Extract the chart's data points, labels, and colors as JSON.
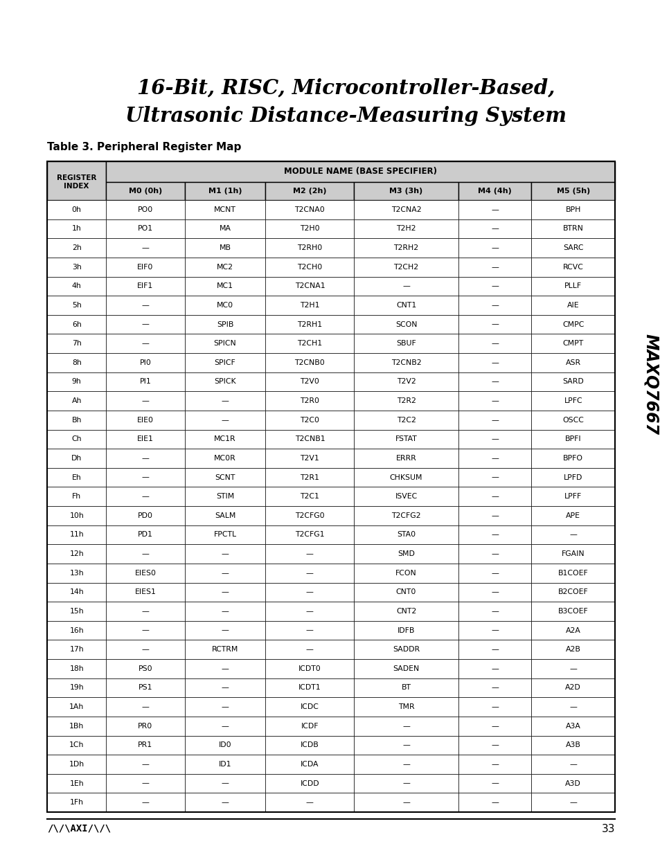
{
  "title_line1": "16-Bit, RISC, Microcontroller-Based,",
  "title_line2": "Ultrasonic Distance-Measuring System",
  "table_title": "Table 3. Peripheral Register Map",
  "side_text": "MAXQ7667",
  "footer_page": "33",
  "col_headers_row1_left": "REGISTER\nINDEX",
  "col_headers_row1_right": "MODULE NAME (BASE SPECIFIER)",
  "col_headers_row2": [
    "M0 (0h)",
    "M1 (1h)",
    "M2 (2h)",
    "M3 (3h)",
    "M4 (4h)",
    "M5 (5h)"
  ],
  "rows": [
    [
      "0h",
      "PO0",
      "MCNT",
      "T2CNA0",
      "T2CNA2",
      "—",
      "BPH"
    ],
    [
      "1h",
      "PO1",
      "MA",
      "T2H0",
      "T2H2",
      "—",
      "BTRN"
    ],
    [
      "2h",
      "—",
      "MB",
      "T2RH0",
      "T2RH2",
      "—",
      "SARC"
    ],
    [
      "3h",
      "EIF0",
      "MC2",
      "T2CH0",
      "T2CH2",
      "—",
      "RCVC"
    ],
    [
      "4h",
      "EIF1",
      "MC1",
      "T2CNA1",
      "—",
      "—",
      "PLLF"
    ],
    [
      "5h",
      "—",
      "MC0",
      "T2H1",
      "CNT1",
      "—",
      "AIE"
    ],
    [
      "6h",
      "—",
      "SPIB",
      "T2RH1",
      "SCON",
      "—",
      "CMPC"
    ],
    [
      "7h",
      "—",
      "SPICN",
      "T2CH1",
      "SBUF",
      "—",
      "CMPT"
    ],
    [
      "8h",
      "PI0",
      "SPICF",
      "T2CNB0",
      "T2CNB2",
      "—",
      "ASR"
    ],
    [
      "9h",
      "PI1",
      "SPICK",
      "T2V0",
      "T2V2",
      "—",
      "SARD"
    ],
    [
      "Ah",
      "—",
      "—",
      "T2R0",
      "T2R2",
      "—",
      "LPFC"
    ],
    [
      "Bh",
      "EIE0",
      "—",
      "T2C0",
      "T2C2",
      "—",
      "OSCC"
    ],
    [
      "Ch",
      "EIE1",
      "MC1R",
      "T2CNB1",
      "FSTAT",
      "—",
      "BPFI"
    ],
    [
      "Dh",
      "—",
      "MC0R",
      "T2V1",
      "ERRR",
      "—",
      "BPFO"
    ],
    [
      "Eh",
      "—",
      "SCNT",
      "T2R1",
      "CHKSUM",
      "—",
      "LPFD"
    ],
    [
      "Fh",
      "—",
      "STIM",
      "T2C1",
      "ISVEC",
      "—",
      "LPFF"
    ],
    [
      "10h",
      "PD0",
      "SALM",
      "T2CFG0",
      "T2CFG2",
      "—",
      "APE"
    ],
    [
      "11h",
      "PD1",
      "FPCTL",
      "T2CFG1",
      "STA0",
      "—",
      "—"
    ],
    [
      "12h",
      "—",
      "—",
      "—",
      "SMD",
      "—",
      "FGAIN"
    ],
    [
      "13h",
      "EIES0",
      "—",
      "—",
      "FCON",
      "—",
      "B1COEF"
    ],
    [
      "14h",
      "EIES1",
      "—",
      "—",
      "CNT0",
      "—",
      "B2COEF"
    ],
    [
      "15h",
      "—",
      "—",
      "—",
      "CNT2",
      "—",
      "B3COEF"
    ],
    [
      "16h",
      "—",
      "—",
      "—",
      "IDFB",
      "—",
      "A2A"
    ],
    [
      "17h",
      "—",
      "RCTRM",
      "—",
      "SADDR",
      "—",
      "A2B"
    ],
    [
      "18h",
      "PS0",
      "—",
      "ICDT0",
      "SADEN",
      "—",
      "—"
    ],
    [
      "19h",
      "PS1",
      "—",
      "ICDT1",
      "BT",
      "—",
      "A2D"
    ],
    [
      "1Ah",
      "—",
      "—",
      "ICDC",
      "TMR",
      "—",
      "—"
    ],
    [
      "1Bh",
      "PR0",
      "—",
      "ICDF",
      "—",
      "—",
      "A3A"
    ],
    [
      "1Ch",
      "PR1",
      "ID0",
      "ICDB",
      "—",
      "—",
      "A3B"
    ],
    [
      "1Dh",
      "—",
      "ID1",
      "ICDA",
      "—",
      "—",
      "—"
    ],
    [
      "1Eh",
      "—",
      "—",
      "ICDD",
      "—",
      "—",
      "A3D"
    ],
    [
      "1Fh",
      "—",
      "—",
      "—",
      "—",
      "—",
      "—"
    ]
  ],
  "bg_color": "#ffffff",
  "text_color": "#000000"
}
